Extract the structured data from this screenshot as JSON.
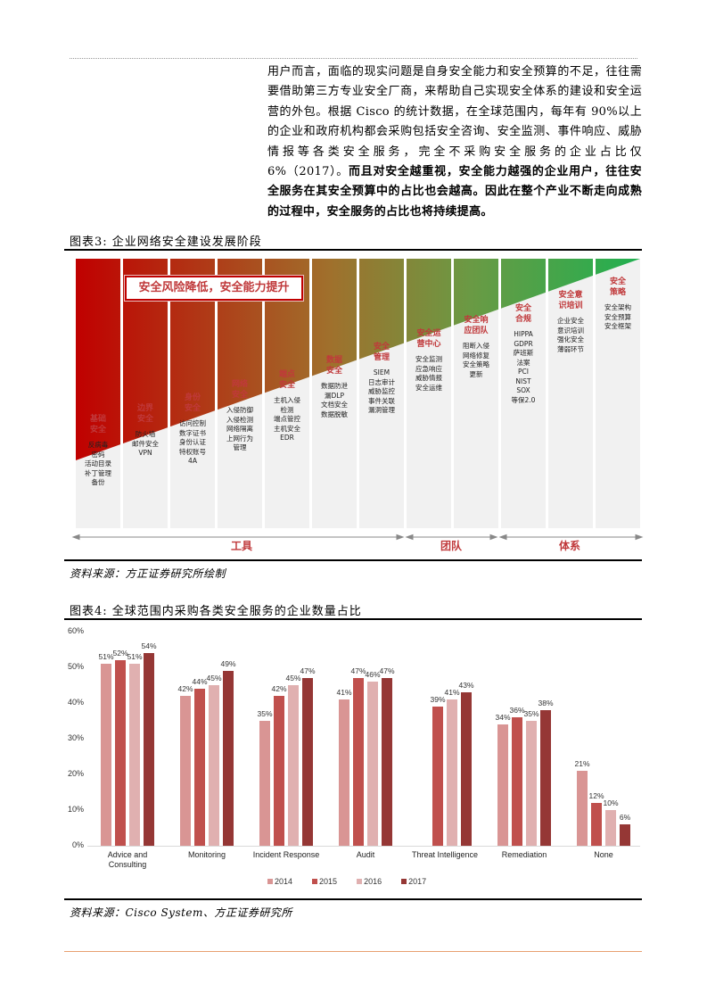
{
  "body_text": {
    "normal": "用户而言，面临的现实问题是自身安全能力和安全预算的不足，往往需要借助第三方专业安全厂商，来帮助自己实现安全体系的建设和安全运营的外包。根据 Cisco 的统计数据，在全球范围内，每年有 90%以上的企业和政府机构都会采购包括安全咨询、安全监测、事件响应、威胁情报等各类安全服务，完全不采购安全服务的企业占比仅 6%（2017）。",
    "bold": "而且对安全越重视，安全能力越强的企业用户，往往安全服务在其安全预算中的占比也会越高。因此在整个产业不断走向成熟的过程中，安全服务的占比也将持续提高。"
  },
  "figure3": {
    "title": "图表3:   企业网络安全建设发展阶段",
    "banner": "安全风险降低，安全能力提升",
    "columns": [
      {
        "head": "基础\n安全",
        "items": [
          "反病毒",
          "密码",
          "活动目录",
          "补丁管理",
          "备份"
        ]
      },
      {
        "head": "边界\n安全",
        "items": [
          "防火墙",
          "邮件安全",
          "VPN"
        ]
      },
      {
        "head": "身份\n安全",
        "items": [
          "访问控制",
          "数字证书",
          "身份认证",
          "特权账号",
          "4A"
        ]
      },
      {
        "head": "网络\n安全",
        "items": [
          "入侵防御",
          "入侵检测",
          "网络隔离",
          "上网行为",
          "管理"
        ]
      },
      {
        "head": "端点\n安全",
        "items": [
          "主机入侵",
          "检测",
          "端点管控",
          "主机安全",
          "EDR"
        ]
      },
      {
        "head": "数据\n安全",
        "items": [
          "数据防泄",
          "漏DLP",
          "文档安全",
          "数据脱敏"
        ]
      },
      {
        "head": "安全\n管理",
        "items": [
          "SIEM",
          "日志审计",
          "威胁监控",
          "事件关联",
          "漏洞管理"
        ]
      },
      {
        "head": "安全运\n营中心",
        "items": [
          "安全监测",
          "应急响应",
          "威胁情报",
          "安全运维"
        ]
      },
      {
        "head": "安全响\n应团队",
        "items": [
          "阻断入侵",
          "网络修复",
          "安全策略",
          "更新"
        ]
      },
      {
        "head": "安全\n合规",
        "items": [
          "HIPPA",
          "GDPR",
          "萨班斯",
          "法案",
          "PCI",
          "NIST",
          "SOX",
          "等保2.0"
        ]
      },
      {
        "head": "安全意\n识培训",
        "items": [
          "企业安全",
          "意识培训",
          "强化安全",
          "薄弱环节"
        ]
      },
      {
        "head": "安全\n策略",
        "items": [
          "安全架构",
          "安全预算",
          "安全框架"
        ]
      }
    ],
    "phases": [
      {
        "label": "工具"
      },
      {
        "label": "团队"
      },
      {
        "label": "体系"
      }
    ],
    "source": "资料来源：方正证券研究所绘制",
    "gradient_start": "#c00000",
    "gradient_end": "#20b050"
  },
  "figure4": {
    "title": "图表4:   全球范围内采购各类安全服务的企业数量占比",
    "source": "资料来源：Cisco System、方正证券研究所"
  },
  "chart_data": {
    "type": "bar",
    "title": "全球范围内采购各类安全服务的企业数量占比",
    "xlabel": "",
    "ylabel": "",
    "ylim": [
      0,
      60
    ],
    "yticks": [
      "0%",
      "10%",
      "20%",
      "30%",
      "40%",
      "50%",
      "60%"
    ],
    "grid": false,
    "legend_position": "bottom",
    "categories": [
      "Advice and Consulting",
      "Monitoring",
      "Incident Response",
      "Audit",
      "Threat Intelligence",
      "Remediation",
      "None"
    ],
    "series": [
      {
        "name": "2014",
        "color": "#d99594",
        "values": [
          51,
          42,
          35,
          41,
          null,
          34,
          21
        ]
      },
      {
        "name": "2015",
        "color": "#c0504d",
        "values": [
          52,
          44,
          42,
          47,
          39,
          36,
          12
        ]
      },
      {
        "name": "2016",
        "color": "#e0b0b0",
        "values": [
          51,
          45,
          45,
          46,
          41,
          35,
          10
        ]
      },
      {
        "name": "2017",
        "color": "#953735",
        "values": [
          54,
          49,
          47,
          47,
          43,
          38,
          6
        ]
      }
    ]
  }
}
